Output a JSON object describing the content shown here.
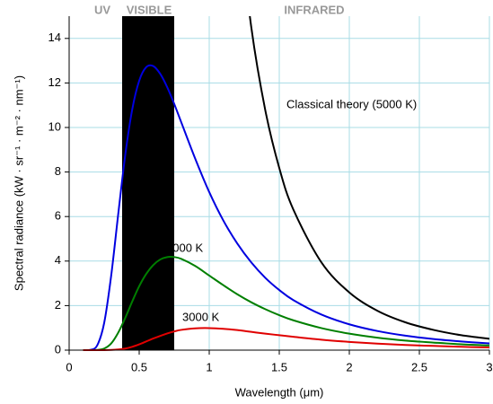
{
  "chart_data": {
    "type": "line",
    "title_labels": [
      "UV",
      "VISIBLE",
      "INFRARED"
    ],
    "x_label": "Wavelength (μm)",
    "y_label": "Spectral radiance (kW · sr⁻¹ · m⁻² · nm⁻¹)",
    "annotations": [
      "Classical theory (5000 K)",
      "4000 K",
      "3000 K"
    ],
    "x": [
      0.1,
      0.15,
      0.2,
      0.25,
      0.3,
      0.35,
      0.4,
      0.45,
      0.5,
      0.55,
      0.6,
      0.65,
      0.7,
      0.75,
      0.8,
      0.9,
      1.0,
      1.1,
      1.2,
      1.3,
      1.4,
      1.5,
      1.6,
      1.8,
      2.0,
      2.2,
      2.4,
      2.6,
      2.8,
      3.0
    ],
    "series": [
      {
        "name": "5000 K",
        "color": "#0000e0",
        "values": [
          0,
          0.01,
          0.21,
          1.22,
          3.34,
          6.09,
          8.74,
          10.8,
          12.1,
          12.71,
          12.76,
          12.41,
          11.81,
          11.06,
          10.24,
          8.6,
          7.1,
          5.83,
          4.79,
          3.94,
          3.25,
          2.7,
          2.25,
          1.6,
          1.16,
          0.86,
          0.65,
          0.5,
          0.39,
          0.3
        ]
      },
      {
        "name": "4000 K",
        "color": "#007f00",
        "values": [
          0,
          0,
          0.01,
          0.07,
          0.3,
          0.78,
          1.44,
          2.18,
          2.87,
          3.42,
          3.82,
          4.07,
          4.18,
          4.18,
          4.1,
          3.78,
          3.35,
          2.92,
          2.51,
          2.15,
          1.84,
          1.57,
          1.34,
          0.99,
          0.74,
          0.56,
          0.43,
          0.34,
          0.26,
          0.21
        ]
      },
      {
        "name": "3000 K",
        "color": "#e00000",
        "values": [
          0,
          0,
          0,
          0,
          0.01,
          0.03,
          0.07,
          0.15,
          0.26,
          0.39,
          0.52,
          0.64,
          0.75,
          0.84,
          0.91,
          0.98,
          0.99,
          0.96,
          0.9,
          0.82,
          0.74,
          0.67,
          0.6,
          0.47,
          0.37,
          0.29,
          0.23,
          0.19,
          0.15,
          0.12
        ]
      },
      {
        "name": "Classical theory (5000 K)",
        "color": "#000000",
        "values": [
          null,
          null,
          null,
          null,
          null,
          null,
          null,
          null,
          null,
          null,
          null,
          null,
          null,
          null,
          null,
          null,
          null,
          null,
          19.98,
          14.51,
          10.78,
          8.18,
          6.32,
          3.95,
          2.59,
          1.77,
          1.25,
          0.91,
          0.67,
          0.51
        ]
      }
    ],
    "xlim": [
      0,
      3
    ],
    "ylim": [
      0,
      15
    ],
    "xticks": [
      0,
      0.5,
      1,
      1.5,
      2,
      2.5,
      3
    ],
    "yticks": [
      0,
      2,
      4,
      6,
      8,
      10,
      12,
      14
    ],
    "grid": true
  }
}
